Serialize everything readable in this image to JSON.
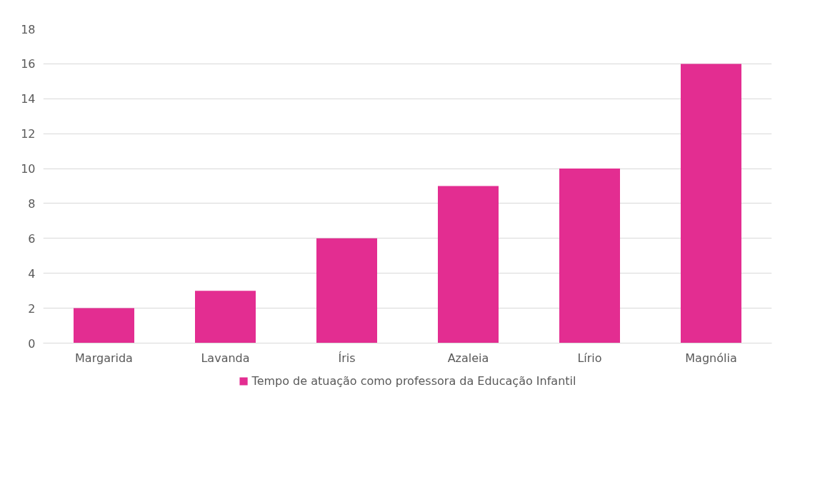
{
  "chart_data": {
    "type": "bar",
    "categories": [
      "Margarida",
      "Lavanda",
      "Íris",
      "Azaleia",
      "Lírio",
      "Magnólia"
    ],
    "series": [
      {
        "name": "Tempo de atuação como professora da Educação Infantil",
        "color": "#e32d91",
        "values": [
          2,
          3,
          6,
          9,
          10,
          16
        ]
      }
    ],
    "ylim": [
      0,
      18
    ],
    "yticks": [
      0,
      2,
      4,
      6,
      8,
      10,
      12,
      14,
      16,
      18
    ],
    "grid": "y",
    "legend": "bottom"
  }
}
